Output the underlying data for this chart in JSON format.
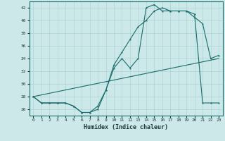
{
  "xlabel": "Humidex (Indice chaleur)",
  "xlim": [
    -0.5,
    23.5
  ],
  "ylim": [
    25.0,
    43.0
  ],
  "yticks": [
    26,
    28,
    30,
    32,
    34,
    36,
    38,
    40,
    42
  ],
  "xticks": [
    0,
    1,
    2,
    3,
    4,
    5,
    6,
    7,
    8,
    9,
    10,
    11,
    12,
    13,
    14,
    15,
    16,
    17,
    18,
    19,
    20,
    21,
    22,
    23
  ],
  "bg_color": "#cce8e8",
  "grid_color": "#aad4d4",
  "line_color": "#1a6b6b",
  "line1_x": [
    0,
    1,
    2,
    3,
    4,
    5,
    6,
    7,
    8,
    9,
    10,
    11,
    12,
    13,
    14,
    15,
    16,
    17,
    18,
    19,
    20,
    21,
    22,
    23
  ],
  "line1_y": [
    28,
    27,
    27,
    27,
    27,
    26.5,
    25.5,
    25.5,
    26,
    29,
    33,
    35,
    37,
    39,
    40,
    41.5,
    42,
    41.5,
    41.5,
    41.5,
    40.5,
    39.5,
    34,
    34.5
  ],
  "line2_x": [
    0,
    1,
    2,
    3,
    4,
    5,
    6,
    7,
    8,
    9,
    10,
    11,
    12,
    13,
    14,
    15,
    16,
    17,
    18,
    19,
    20,
    21,
    22,
    23
  ],
  "line2_y": [
    28,
    27,
    27,
    27,
    27,
    26.5,
    25.5,
    25.5,
    26.5,
    29,
    32.5,
    34,
    32.5,
    34,
    42,
    42.5,
    41.5,
    41.5,
    41.5,
    41.5,
    41,
    27,
    27,
    27
  ],
  "line3_x": [
    0,
    23
  ],
  "line3_y": [
    28,
    34
  ]
}
